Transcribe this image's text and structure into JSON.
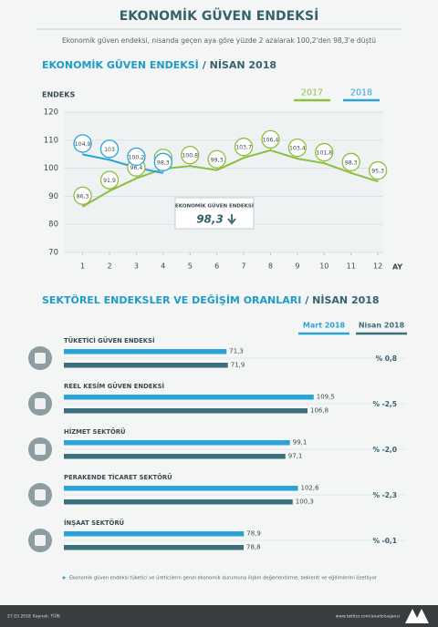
{
  "title": "EKONOMİK GÜVEN ENDEKSİ",
  "subtitle": "Ekonomik güven endeksi, nisanda geçen aya göre yüzde 2 azalarak 100,2'den 98,3'e düştü",
  "chart_data": [
    {
      "type": "line",
      "title": "EKONOMİK GÜVEN ENDEKSİ",
      "title_suffix": "/ NİSAN 2018",
      "y_label": "ENDEKS",
      "x_label": "AY",
      "x": [
        1,
        2,
        3,
        4,
        5,
        6,
        7,
        8,
        9,
        10,
        11,
        12
      ],
      "xlim": [
        0.3,
        12.2
      ],
      "xticks": [
        1,
        2,
        3,
        4,
        5,
        6,
        7,
        8,
        9,
        10,
        11,
        12
      ],
      "ylim": [
        70,
        120
      ],
      "yticks": [
        70,
        80,
        90,
        100,
        110,
        120
      ],
      "grid": true,
      "series": [
        {
          "name": "2017",
          "color": "#8cbf3f",
          "values": [
            86.3,
            91.9,
            96.4,
            99.8,
            100.8,
            99.3,
            103.7,
            106.4,
            103.4,
            101.8,
            98.3,
            95.3
          ],
          "value_labels": [
            "86,3",
            "91,9",
            "96,4",
            "99,8",
            "100,8",
            "99,3",
            "103,7",
            "106,4",
            "103,4",
            "101,8",
            "98,3",
            "95,3"
          ]
        },
        {
          "name": "2018",
          "color": "#2aa3d9",
          "values": [
            104.9,
            103,
            100.2,
            98.3,
            null,
            null,
            null,
            null,
            null,
            null,
            null,
            null
          ],
          "value_labels": [
            "104,9",
            "103",
            "100,2",
            "98,3",
            null,
            null,
            null,
            null,
            null,
            null,
            null,
            null
          ]
        }
      ],
      "annotation": "EKONOMİK GÜVEN ENDEKSİ"
    },
    {
      "type": "hbar",
      "title": "SEKTÖREL ENDEKSLER VE DEĞİŞİM ORANLARI",
      "title_suffix": "/ NİSAN 2018",
      "categories": [
        "TÜKETİCİ GÜVEN ENDEKSİ",
        "REEL KESİM GÜVEN ENDEKSİ",
        "HİZMET SEKTÖRÜ",
        "PERAKENDE TİCARET SEKTÖRÜ",
        "İNŞAAT SEKTÖRÜ"
      ],
      "xlim": [
        0,
        116
      ],
      "series": [
        {
          "name": "Mart 2018",
          "color": "#2aa3d9",
          "values": [
            71.3,
            109.5,
            99.1,
            102.6,
            78.9
          ],
          "value_labels": [
            "71,3",
            "109,5",
            "99,1",
            "102,6",
            "78,9"
          ]
        },
        {
          "name": "Nisan 2018",
          "color": "#3c6e7b",
          "values": [
            71.9,
            106.8,
            97.1,
            100.3,
            78.8
          ],
          "value_labels": [
            "71,9",
            "106,8",
            "97,1",
            "100,3",
            "78,8"
          ]
        }
      ],
      "changes": [
        "% 0,8",
        "% -2,5",
        "% -2,0",
        "% -2,3",
        "% -0,1"
      ]
    }
  ],
  "footnote": "Ekonomik güven endeksi tüketici ve üreticilerin genel ekonomik durumuna ilişkin değerlendirme, beklenti ve eğilimlerini özetliyor",
  "footer": {
    "date": "27.03.2018",
    "source": "Kaynak: TÜİK",
    "url": "www.twitter.com/anadoluajansi"
  }
}
